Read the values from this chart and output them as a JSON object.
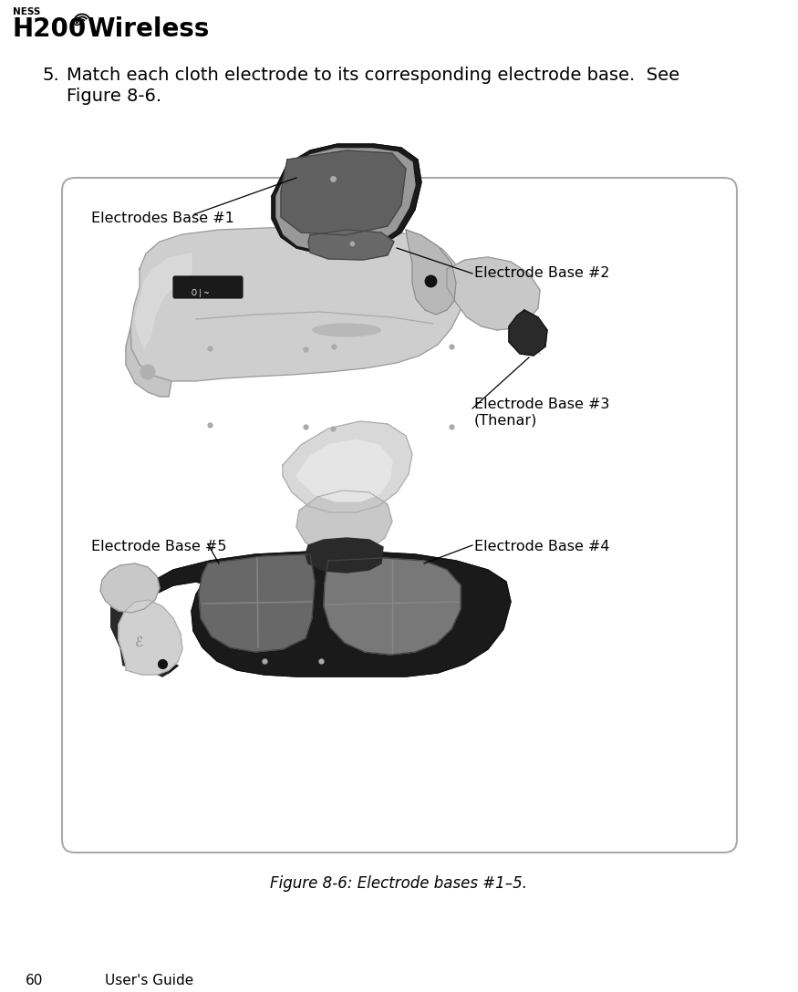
{
  "page_bg": "#ffffff",
  "title_brand": "NESS",
  "title_h200": "H200",
  "title_reg": "®",
  "title_wireless": "Wireless",
  "page_number": "60",
  "page_footer": "User's Guide",
  "step_number": "5.",
  "step_text_line1": "Match each cloth electrode to its corresponding electrode base.  See",
  "step_text_line2": "Figure 8-6.",
  "figure_caption": "Figure 8-6: Electrode bases #1–5.",
  "label_1": "Electrodes Base #1",
  "label_2": "Electrode Base #2",
  "label_3_line1": "Electrode Base #3",
  "label_3_line2": "(Thenar)",
  "label_4": "Electrode Base #4",
  "label_5": "Electrode Base #5",
  "box_edge_color": "#aaaaaa",
  "box_bg": "#ffffff",
  "text_color": "#000000",
  "device_light_gray": "#d0d0d0",
  "device_mid_gray": "#a0a0a0",
  "device_dark_gray": "#383838",
  "device_darkest": "#1a1a1a",
  "device_pad_gray": "#686868",
  "device_pad_light": "#888888"
}
